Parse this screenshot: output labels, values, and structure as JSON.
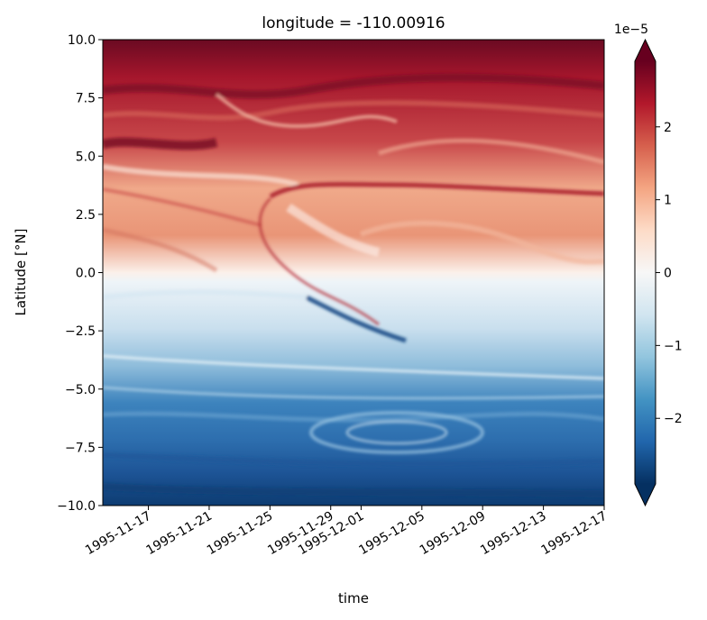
{
  "chart_data": {
    "type": "heatmap",
    "title": "longitude = -110.00916",
    "xlabel": "time",
    "ylabel": "Latitude [°N]",
    "colorbar": {
      "label": "",
      "multiplier": "1e−5",
      "ticks": [
        {
          "value": -2,
          "label": "−2"
        },
        {
          "value": -1,
          "label": "−1"
        },
        {
          "value": 0,
          "label": "0"
        },
        {
          "value": 1,
          "label": "1"
        },
        {
          "value": 2,
          "label": "2"
        }
      ],
      "range": [
        -2.9,
        2.9
      ],
      "colormap": "RdBu_r",
      "extend": "both"
    },
    "xlim": [
      "1995-11-14",
      "1995-12-17"
    ],
    "ylim": [
      -10.0,
      10.0
    ],
    "x_ticks": [
      {
        "value": "1995-11-17",
        "label": "1995-11-17"
      },
      {
        "value": "1995-11-21",
        "label": "1995-11-21"
      },
      {
        "value": "1995-11-25",
        "label": "1995-11-25"
      },
      {
        "value": "1995-11-29",
        "label": "1995-11-29"
      },
      {
        "value": "1995-12-01",
        "label": "1995-12-01"
      },
      {
        "value": "1995-12-05",
        "label": "1995-12-05"
      },
      {
        "value": "1995-12-09",
        "label": "1995-12-09"
      },
      {
        "value": "1995-12-13",
        "label": "1995-12-13"
      },
      {
        "value": "1995-12-17",
        "label": "1995-12-17"
      }
    ],
    "y_ticks": [
      {
        "value": -10.0,
        "label": "−10.0"
      },
      {
        "value": -7.5,
        "label": "−7.5"
      },
      {
        "value": -5.0,
        "label": "−5.0"
      },
      {
        "value": -2.5,
        "label": "−2.5"
      },
      {
        "value": 0.0,
        "label": "0.0"
      },
      {
        "value": 2.5,
        "label": "2.5"
      },
      {
        "value": 5.0,
        "label": "5.0"
      },
      {
        "value": 7.5,
        "label": "7.5"
      },
      {
        "value": 10.0,
        "label": "10.0"
      }
    ],
    "grid": false,
    "colors": {
      "low": "#053061",
      "mid": "#f7f7f7",
      "high": "#67001f"
    }
  }
}
